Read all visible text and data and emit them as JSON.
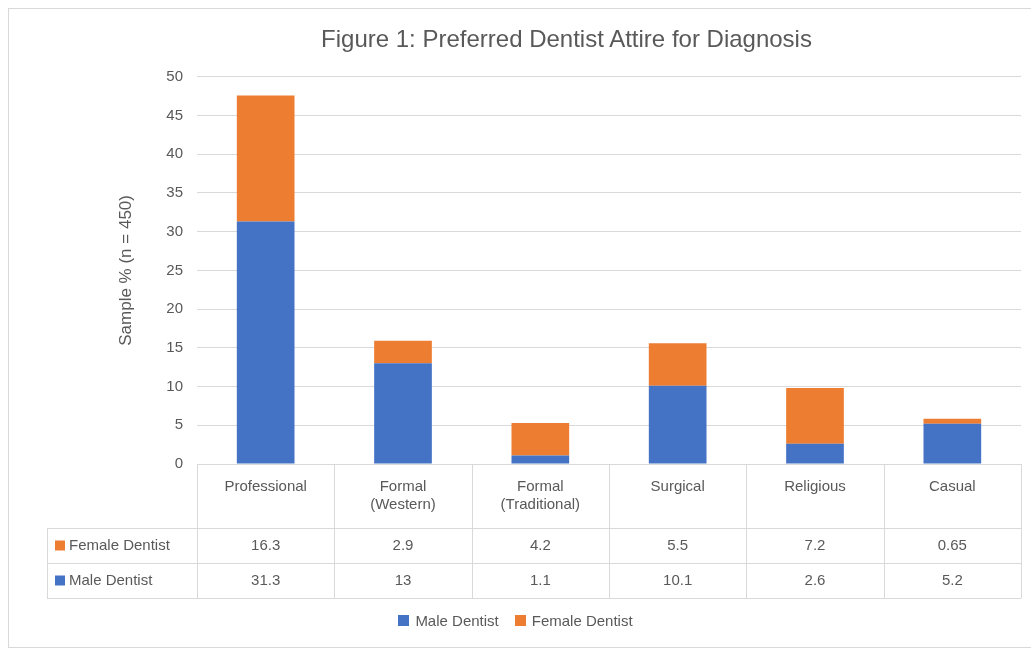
{
  "chart_data": {
    "type": "bar",
    "title": "Figure 1: Preferred Dentist Attire for Diagnosis",
    "ylabel": "Sample % (n = 450)",
    "categories": [
      "Professional",
      "Formal\n(Western)",
      "Formal\n(Traditional)",
      "Surgical",
      "Religious",
      "Casual"
    ],
    "series": [
      {
        "name": "Male Dentist",
        "color": "#4472c4",
        "values": [
          31.3,
          13,
          1.1,
          10.1,
          2.6,
          5.2
        ]
      },
      {
        "name": "Female Dentist",
        "color": "#ed7d31",
        "values": [
          16.3,
          2.9,
          4.2,
          5.5,
          7.2,
          0.65
        ]
      }
    ],
    "stacked": true,
    "ylim": [
      0,
      50
    ],
    "yticks": [
      0,
      5,
      10,
      15,
      20,
      25,
      30,
      35,
      40,
      45,
      50
    ],
    "grid": "y",
    "legend": "bottom",
    "data_labels": true
  }
}
